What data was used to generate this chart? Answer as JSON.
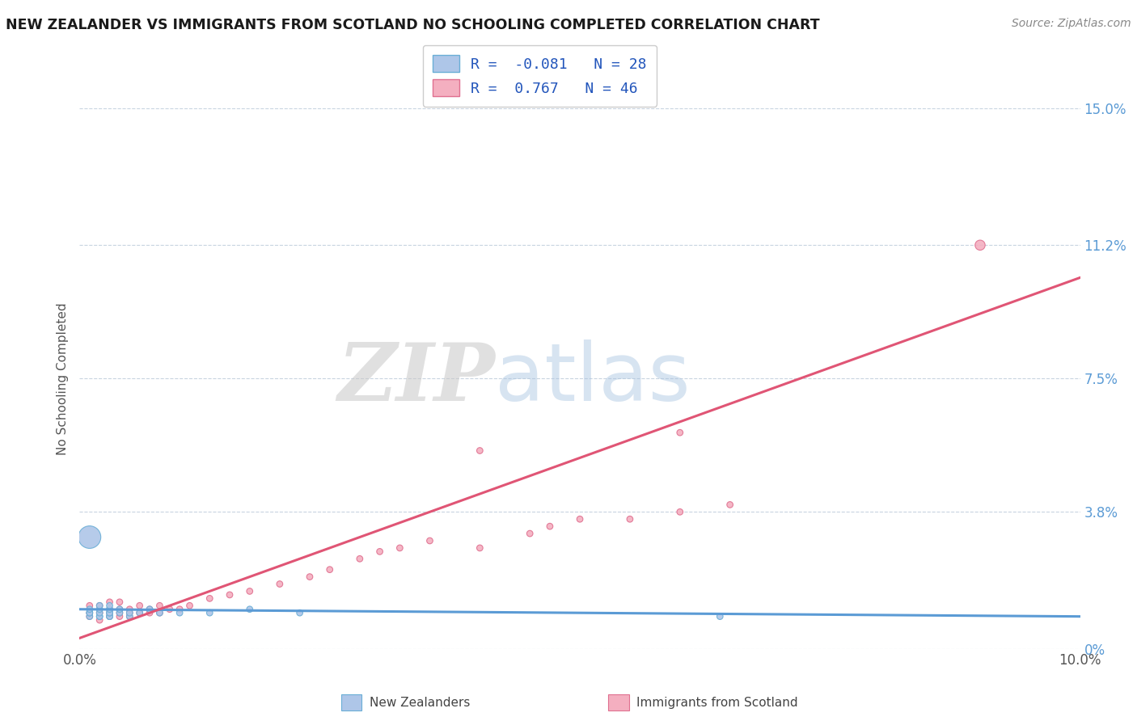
{
  "title": "NEW ZEALANDER VS IMMIGRANTS FROM SCOTLAND NO SCHOOLING COMPLETED CORRELATION CHART",
  "source": "Source: ZipAtlas.com",
  "ylabel": "No Schooling Completed",
  "legend_label1": "New Zealanders",
  "legend_label2": "Immigrants from Scotland",
  "R1": -0.081,
  "N1": 28,
  "R2": 0.767,
  "N2": 46,
  "color1": "#aec6e8",
  "color2": "#f4afc0",
  "edge_color1": "#6aaed6",
  "edge_color2": "#e07090",
  "trend_color1": "#5b9bd5",
  "trend_color2": "#e05575",
  "xmin": 0.0,
  "xmax": 0.1,
  "ymin": 0.0,
  "ymax": 0.15,
  "ytick_labels": [
    "0%",
    "3.8%",
    "7.5%",
    "11.2%",
    "15.0%"
  ],
  "ytick_values": [
    0.0,
    0.038,
    0.075,
    0.112,
    0.15
  ],
  "watermark_zip": "ZIP",
  "watermark_atlas": "atlas",
  "background_color": "#ffffff",
  "grid_color": "#c8d4e0",
  "title_color": "#1a1a1a",
  "source_color": "#888888",
  "axis_label_color": "#555555",
  "tick_color": "#5b9bd5",
  "legend_text_color": "#2255bb",
  "scatter1_x": [
    0.001,
    0.001,
    0.001,
    0.001,
    0.002,
    0.002,
    0.002,
    0.002,
    0.002,
    0.003,
    0.003,
    0.003,
    0.003,
    0.003,
    0.003,
    0.004,
    0.004,
    0.005,
    0.005,
    0.006,
    0.007,
    0.008,
    0.01,
    0.013,
    0.017,
    0.022,
    0.064,
    0.001
  ],
  "scatter1_y": [
    0.009,
    0.01,
    0.01,
    0.011,
    0.009,
    0.009,
    0.01,
    0.011,
    0.012,
    0.009,
    0.009,
    0.01,
    0.01,
    0.011,
    0.012,
    0.01,
    0.011,
    0.009,
    0.01,
    0.01,
    0.011,
    0.01,
    0.01,
    0.01,
    0.011,
    0.01,
    0.009,
    0.031
  ],
  "scatter1_sizes": [
    30,
    30,
    30,
    30,
    30,
    30,
    30,
    30,
    30,
    30,
    30,
    30,
    30,
    30,
    30,
    30,
    30,
    30,
    30,
    30,
    30,
    30,
    30,
    30,
    30,
    30,
    30,
    400
  ],
  "scatter2_x": [
    0.001,
    0.001,
    0.001,
    0.002,
    0.002,
    0.002,
    0.003,
    0.003,
    0.003,
    0.003,
    0.004,
    0.004,
    0.004,
    0.004,
    0.005,
    0.005,
    0.005,
    0.006,
    0.006,
    0.007,
    0.007,
    0.008,
    0.008,
    0.009,
    0.01,
    0.011,
    0.013,
    0.015,
    0.017,
    0.02,
    0.023,
    0.025,
    0.028,
    0.03,
    0.032,
    0.035,
    0.04,
    0.045,
    0.047,
    0.05,
    0.055,
    0.06,
    0.065,
    0.04,
    0.06,
    0.09
  ],
  "scatter2_y": [
    0.009,
    0.01,
    0.012,
    0.008,
    0.01,
    0.012,
    0.009,
    0.01,
    0.011,
    0.013,
    0.009,
    0.01,
    0.011,
    0.013,
    0.009,
    0.01,
    0.011,
    0.01,
    0.012,
    0.01,
    0.011,
    0.01,
    0.012,
    0.011,
    0.011,
    0.012,
    0.014,
    0.015,
    0.016,
    0.018,
    0.02,
    0.022,
    0.025,
    0.027,
    0.028,
    0.03,
    0.028,
    0.032,
    0.034,
    0.036,
    0.036,
    0.038,
    0.04,
    0.055,
    0.06,
    0.112
  ],
  "scatter2_sizes": [
    30,
    30,
    30,
    30,
    30,
    30,
    30,
    30,
    30,
    30,
    30,
    30,
    30,
    30,
    30,
    30,
    30,
    30,
    30,
    30,
    30,
    30,
    30,
    30,
    30,
    30,
    30,
    30,
    30,
    30,
    30,
    30,
    30,
    30,
    30,
    30,
    30,
    30,
    30,
    30,
    30,
    30,
    30,
    30,
    30,
    80
  ],
  "trend1_x": [
    0.0,
    0.1
  ],
  "trend1_y": [
    0.011,
    0.009
  ],
  "trend2_x": [
    0.0,
    0.1
  ],
  "trend2_y": [
    0.003,
    0.103
  ]
}
